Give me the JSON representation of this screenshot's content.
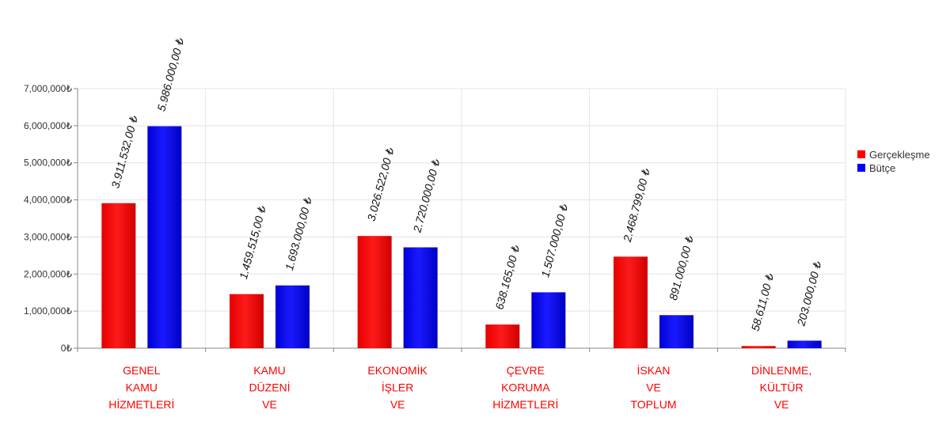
{
  "chart_data": {
    "type": "bar",
    "categories": [
      [
        "GENEL",
        "KAMU",
        "HİZMETLERİ"
      ],
      [
        "KAMU",
        "DÜZENİ",
        "VE"
      ],
      [
        "EKONOMİK",
        "İŞLER",
        "VE"
      ],
      [
        "ÇEVRE",
        "KORUMA",
        "HİZMETLERİ"
      ],
      [
        "İSKAN",
        "VE",
        "TOPLUM"
      ],
      [
        "DİNLENME,",
        "KÜLTÜR",
        "VE"
      ]
    ],
    "series": [
      {
        "name": "Gerçekleşme",
        "color": "#ff0000",
        "values": [
          3911532,
          1459515,
          3026522,
          638165,
          2468799,
          58611
        ],
        "labels": [
          "3.911.532,00 ₺",
          "1.459.515,00 ₺",
          "3.026.522,00 ₺",
          "638.165,00 ₺",
          "2.468.799,00 ₺",
          "58.611,00 ₺"
        ]
      },
      {
        "name": "Bütçe",
        "color": "#0000ff",
        "values": [
          5986000,
          1693000,
          2720000,
          1507000,
          891000,
          203000
        ],
        "labels": [
          "5.986.000,00 ₺",
          "1.693.000,00 ₺",
          "2.720.000,00 ₺",
          "1.507.000,00 ₺",
          "891.000,00 ₺",
          "203.000,00 ₺"
        ]
      }
    ],
    "ylim": [
      0,
      7000000
    ],
    "yticks": [
      0,
      1000000,
      2000000,
      3000000,
      4000000,
      5000000,
      6000000,
      7000000
    ],
    "ytick_labels": [
      "0₺",
      "1,000,000₺",
      "2,000,000₺",
      "3,000,000₺",
      "4,000,000₺",
      "5,000,000₺",
      "6,000,000₺",
      "7,000,000₺"
    ],
    "grid": true,
    "legend_position": "right"
  }
}
